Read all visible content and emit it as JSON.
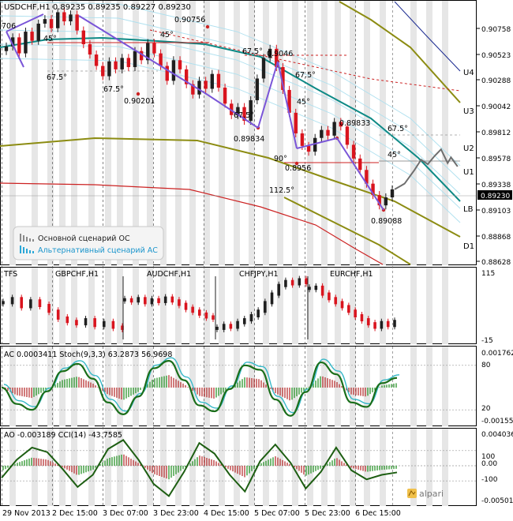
{
  "main": {
    "header": "USDCHF,H1  0.89235 0.89235 0.89227 0.89230",
    "current_price_label": "0.89230",
    "price_ticks": [
      "0.90758",
      "0.90523",
      "0.90288",
      "0.90042",
      "0.89812",
      "0.89578",
      "0.89338",
      "0.89103",
      "0.88868",
      "0.88628"
    ],
    "level_labels": [
      "U4",
      "U3",
      "U2",
      "U1",
      "LB",
      "D1"
    ],
    "price_annotations": [
      "0.90756",
      "0.90201",
      "0.9046",
      "0.89834",
      "0.89833",
      "0.8956",
      "0.89088",
      "706"
    ],
    "angle_annotations": [
      "45°",
      "45°",
      "67.5°",
      "67.5°",
      "67.5°",
      "67.5°",
      "45°",
      "67.5°",
      "67.5°",
      "45°",
      "90°",
      "112.5°"
    ],
    "legend": {
      "primary": "Основной сценарий ОС",
      "alternative": "Альтернативный сценарий АС"
    }
  },
  "tfs": {
    "title": "TFS",
    "pairs": [
      "GBPCHF,H1",
      "AUDCHF,H1",
      "CHFJPY,H1",
      "EURCHF,H1"
    ],
    "scale_labels": [
      "115",
      "-15"
    ]
  },
  "ac": {
    "title": "AC 0.0003411  Stoch(9,3,3) 63.2873 56.9698",
    "scale_labels": [
      "0.001762",
      "80",
      "20",
      "-0.001554"
    ]
  },
  "ao": {
    "title": "AO -0.003189  CCI(14) -43.7585",
    "scale_labels": [
      "0.004036",
      "100",
      "0.00",
      "-100",
      "-0.005018"
    ]
  },
  "time_axis": [
    "29 Nov 2013",
    "2 Dec 15:00",
    "3 Dec 07:00",
    "3 Dec 23:00",
    "4 Dec 15:00",
    "5 Dec 07:00",
    "5 Dec 23:00",
    "6 Dec 15:00"
  ],
  "brand": "alpari",
  "colors": {
    "bull": "#1f1f1f",
    "bear": "#d9141e",
    "ema_teal": "#0e8a86",
    "olive": "#8c8c12",
    "scenario_primary": "#6e6e6e",
    "scenario_alt": "#2aa7d8",
    "trendline": "#7a55d8",
    "hist_green": "#188a18",
    "hist_red": "#b22222",
    "stoch_green": "#1a6e1a",
    "stoch_cyan": "#36b8c8"
  },
  "chart_data": [
    {
      "type": "line",
      "title": "USDCHF,H1",
      "ylim": [
        0.8858,
        0.9088
      ],
      "annotated_points": [
        {
          "label": "0.90756",
          "y": 0.90756
        },
        {
          "label": "0.90201",
          "y": 0.90201
        },
        {
          "label": "0.9046",
          "y": 0.9046
        },
        {
          "label": "0.89834",
          "y": 0.89834
        },
        {
          "label": "0.89833",
          "y": 0.89833
        },
        {
          "label": "0.8956",
          "y": 0.8956
        },
        {
          "label": "0.89088",
          "y": 0.89088
        }
      ],
      "close_series": [
        0.9048,
        0.9056,
        0.9042,
        0.9061,
        0.9053,
        0.9068,
        0.9072,
        0.9064,
        0.9078,
        0.907,
        0.9076,
        0.9062,
        0.905,
        0.9041,
        0.9031,
        0.9022,
        0.9035,
        0.9028,
        0.9038,
        0.903,
        0.9044,
        0.9036,
        0.9051,
        0.9042,
        0.9031,
        0.9018,
        0.9036,
        0.9028,
        0.9015,
        0.9006,
        0.9018,
        0.9011,
        0.9024,
        0.9012,
        0.8998,
        0.8988,
        0.8995,
        0.8983,
        0.9001,
        0.902,
        0.9038,
        0.9046,
        0.903,
        0.901,
        0.899,
        0.8972,
        0.8961,
        0.8956,
        0.8968,
        0.8975,
        0.897,
        0.8982,
        0.8978,
        0.8962,
        0.895,
        0.894,
        0.8928,
        0.8918,
        0.8909,
        0.8916,
        0.8923
      ],
      "series": [
        {
          "name": "Основной сценарий ОС",
          "x": [
            0,
            3,
            6,
            8,
            10,
            12,
            14,
            16,
            17,
            19
          ],
          "y": [
            0.8923,
            0.8928,
            0.894,
            0.8949,
            0.8945,
            0.8952,
            0.8958,
            0.8946,
            0.8951,
            0.8943
          ]
        },
        {
          "name": "Альтернативный сценарий АС",
          "x": [],
          "y": []
        }
      ],
      "levels": [
        {
          "label": "U4",
          "y": 0.9034
        },
        {
          "label": "U3",
          "y": 0.9006
        },
        {
          "label": "U2",
          "y": 0.8978
        },
        {
          "label": "U1",
          "y": 0.8955
        },
        {
          "label": "LB",
          "y": 0.891
        },
        {
          "label": "D1",
          "y": 0.8877
        }
      ]
    },
    {
      "type": "line",
      "title": "TFS",
      "ylim": [
        -15,
        115
      ],
      "series": [
        {
          "name": "GBPCHF,H1",
          "values": [
            55,
            62,
            48,
            58,
            50,
            40,
            28,
            22,
            18,
            25,
            15,
            20,
            12,
            10
          ]
        },
        {
          "name": "AUDCHF,H1",
          "values": [
            60,
            58,
            62,
            55,
            60,
            57,
            63,
            58,
            52,
            45,
            40,
            35,
            30,
            28
          ]
        },
        {
          "name": "CHFJPY,H1",
          "values": [
            10,
            15,
            12,
            20,
            25,
            32,
            40,
            55,
            70,
            85,
            92,
            88,
            95,
            90
          ]
        },
        {
          "name": "EURCHF,H1",
          "values": [
            80,
            82,
            70,
            62,
            55,
            48,
            40,
            32,
            25,
            18,
            12,
            20,
            15,
            22
          ]
        }
      ]
    },
    {
      "type": "line",
      "title": "AC 0.0003411  Stoch(9,3,3) 63.2873 56.9698",
      "ylim": [
        0,
        100
      ],
      "series": [
        {
          "name": "Stoch(9,3,3)",
          "values": [
            50,
            28,
            20,
            45,
            72,
            82,
            62,
            30,
            14,
            38,
            76,
            86,
            60,
            26,
            18,
            48,
            80,
            74,
            34,
            12,
            44,
            84,
            68,
            30,
            24,
            56,
            63
          ]
        }
      ]
    },
    {
      "type": "line",
      "title": "AO -0.003189  CCI(14) -43.7585",
      "ylim": [
        -250,
        250
      ],
      "series": [
        {
          "name": "CCI(14)",
          "values": [
            -80,
            40,
            120,
            90,
            -20,
            -140,
            -60,
            110,
            170,
            40,
            -120,
            -200,
            -40,
            150,
            80,
            -60,
            -170,
            30,
            140,
            20,
            -150,
            -40,
            120,
            -30,
            -90,
            -60,
            -44
          ]
        }
      ]
    }
  ]
}
